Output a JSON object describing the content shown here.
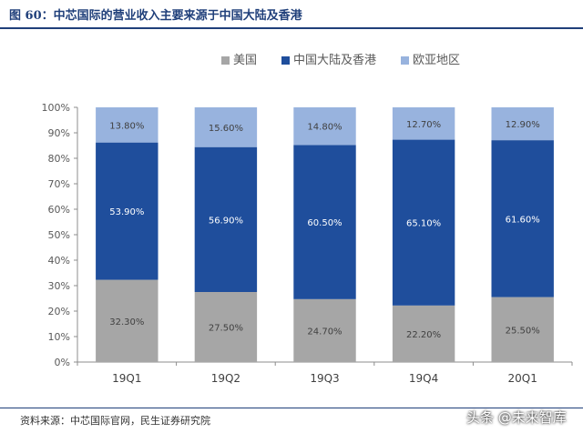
{
  "figure": {
    "title": "图 60：中芯国际的营业收入主要来源于中国大陆及香港",
    "source": "资料来源：中芯国际官网，民生证券研究院",
    "watermark": "头条 @未来智库"
  },
  "colors": {
    "series": [
      "#a6a6a6",
      "#1f4e9c",
      "#98b3de"
    ],
    "header": "#1f3f7a"
  },
  "chart_data": {
    "type": "bar",
    "stacked": true,
    "categories": [
      "19Q1",
      "19Q2",
      "19Q3",
      "19Q4",
      "20Q1"
    ],
    "series": [
      {
        "name": "美国",
        "values": [
          32.3,
          27.5,
          24.7,
          22.2,
          25.5
        ],
        "labels": [
          "32.30%",
          "27.50%",
          "24.70%",
          "22.20%",
          "25.50%"
        ]
      },
      {
        "name": "中国大陆及香港",
        "values": [
          53.9,
          56.9,
          60.5,
          65.1,
          61.6
        ],
        "labels": [
          "53.90%",
          "56.90%",
          "60.50%",
          "65.10%",
          "61.60%"
        ]
      },
      {
        "name": "欧亚地区",
        "values": [
          13.8,
          15.6,
          14.8,
          12.7,
          12.9
        ],
        "labels": [
          "13.80%",
          "15.60%",
          "14.80%",
          "12.70%",
          "12.90%"
        ]
      }
    ],
    "yticks": [
      "0%",
      "10%",
      "20%",
      "30%",
      "40%",
      "50%",
      "60%",
      "70%",
      "80%",
      "90%",
      "100%"
    ],
    "ylim": [
      0,
      100
    ],
    "legend_position": "top",
    "grid": false
  }
}
